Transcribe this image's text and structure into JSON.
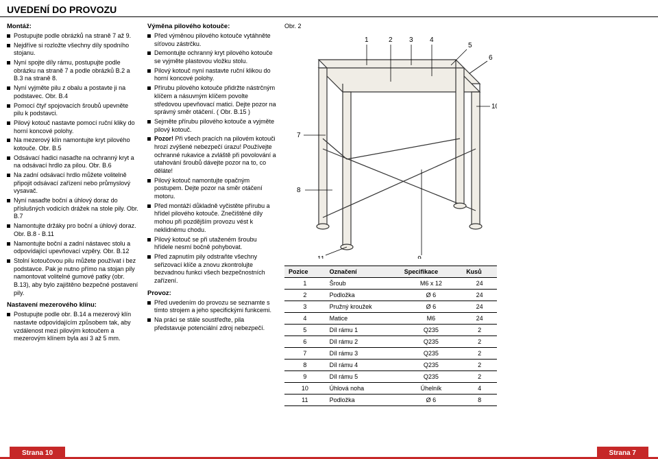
{
  "title": "UVEDENÍ DO PROVOZU",
  "col1": {
    "h1": "Montáž:",
    "items1": [
      "Postupujte podle obrázků na straně 7 až 9.",
      "Nejdříve si rozložte všechny díly spodního stojanu.",
      "Nyní spojte díly rámu, postupujte podle obrázku na straně 7 a podle obrázků B.2 a B.3 na straně 8.",
      "Nyní vyjměte pilu z obalu a postavte ji na podstavec. Obr. B.4",
      "Pomocí čtyř spojovacích šroubů upevněte pilu k podstavci.",
      "Pilový kotouč nastavte pomocí ruční kliky do horní koncové polohy.",
      "Na mezerový klín namontujte kryt pilového kotouče. Obr. B.5",
      "Odsávací hadici nasaďte na ochranný kryt a na odsávací hrdlo za pilou. Obr. B.6",
      "Na zadní odsávací hrdlo můžete volitelně připojit odsávací zařízení nebo průmyslový vysavač.",
      "Nyní nasaďte boční a úhlový doraz do příslušných vodicích drážek na stole pily. Obr. B.7",
      "Namontujte držáky pro boční a úhlový doraz. Obr. B.8 - B.11",
      "Namontujte boční a zadní nástavec stolu a odpovídající upevňovací vzpěry. Obr. B.12",
      "Stolní kotoučovou pilu můžete používat i bez podstavce. Pak je nutno přímo na stojan pily namontovat volitelné gumové patky (obr. B.13), aby bylo zajištěno bezpečné postavení pily."
    ],
    "h2": "Nastavení mezerového klínu:",
    "items2": [
      "Postupujte podle obr. B.14 a mezerový klín nastavte odpovídajícím způsobem tak, aby vzdálenost mezi pilovým kotoučem a mezerovým klínem byla asi 3 až 5 mm."
    ]
  },
  "col2": {
    "h1": "Výměna pilového kotouče:",
    "items1": [
      "Před výměnou pilového kotouče vytáhněte síťovou zástrčku.",
      "Demontujte ochranný kryt pilového kotouče se vyjměte plastovou vložku stolu.",
      "Pilový kotouč nyní nastavte ruční klikou do horní koncové polohy.",
      "Přírubu pilového kotouče přidržte nástrčným klíčem a násuvným klíčem povolte středovou upevňovací matici. Dejte pozor na správný směr otáčení. ( Obr. B.15 )",
      "Sejměte přírubu pilového kotouče a vyjměte pilový kotouč.",
      "Pozor! Při všech pracích na pilovém kotouči hrozí zvýšené nebezpečí úrazu! Používejte ochranné rukavice a zvláště při povolování a utahování šroubů dávejte pozor na to, co děláte!",
      "Pilový kotouč namontujte opačným postupem. Dejte pozor na směr otáčení motoru.",
      "Před montáží důkladně vyčistěte přírubu a hřídel pilového kotouče. Znečištěné díly mohou při pozdějším provozu vést k neklidnému chodu.",
      "Pilový kotouč se při utaženém šroubu hřídele nesmí bočně pohybovat.",
      "Před zapnutím pily odstraňte všechny seřizovací klíče a znovu zkontrolujte bezvadnou funkci všech bezpečnostních zařízení."
    ],
    "h2": "Provoz:",
    "items2": [
      "Před uvedením do provozu se seznamte s tímto strojem a jeho specifickými funkcemi.",
      "Na práci se stále soustřeďte, pila představuje potenciální zdroj nebezpečí."
    ]
  },
  "figureLabel": "Obr. 2",
  "table": {
    "headers": [
      "Pozice",
      "Označení",
      "Specifikace",
      "Kusů"
    ],
    "rows": [
      [
        "1",
        "Šroub",
        "M6 x 12",
        "24"
      ],
      [
        "2",
        "Podložka",
        "Ø 6",
        "24"
      ],
      [
        "3",
        "Pružný kroužek",
        "Ø 6",
        "24"
      ],
      [
        "4",
        "Matice",
        "M6",
        "24"
      ],
      [
        "5",
        "Díl rámu 1",
        "Q235",
        "2"
      ],
      [
        "6",
        "Díl rámu 2",
        "Q235",
        "2"
      ],
      [
        "7",
        "Díl rámu 3",
        "Q235",
        "2"
      ],
      [
        "8",
        "Díl rámu 4",
        "Q235",
        "2"
      ],
      [
        "9",
        "Díl rámu 5",
        "Q235",
        "2"
      ],
      [
        "10",
        "Úhlová noha",
        "Úhelník",
        "4"
      ],
      [
        "11",
        "Podložka",
        "Ø 6",
        "8"
      ]
    ]
  },
  "footer": {
    "left": "Strana 10",
    "right": "Strana 7"
  },
  "diagram": {
    "labels": [
      "1",
      "2",
      "3",
      "4",
      "5",
      "6",
      "7",
      "8",
      "9",
      "10",
      "11"
    ],
    "stroke": "#333333",
    "fill": "#f0ede6",
    "text": "#000000"
  }
}
